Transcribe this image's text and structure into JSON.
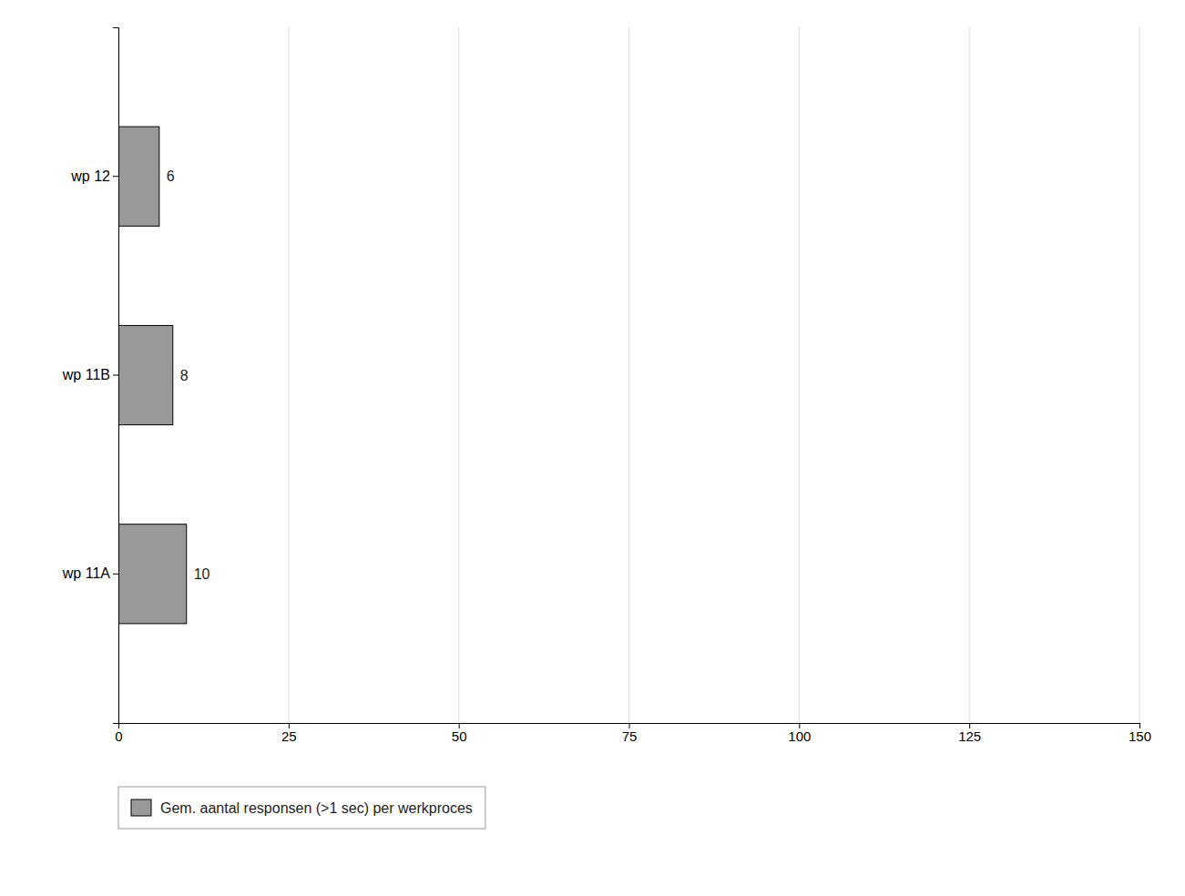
{
  "chart_data": {
    "type": "bar",
    "orientation": "horizontal",
    "categories": [
      "wp 11A",
      "wp 11B",
      "wp 12"
    ],
    "series": [
      {
        "name": "Gem. aantal responsen (>1 sec) per werkproces",
        "color": "#999999",
        "values": [
          10,
          8,
          6
        ]
      }
    ],
    "xlim": [
      0,
      150
    ],
    "xticks": [
      0,
      25,
      50,
      75,
      100,
      125,
      150
    ],
    "grid": true,
    "legend": "bottom",
    "data_labels": true
  }
}
